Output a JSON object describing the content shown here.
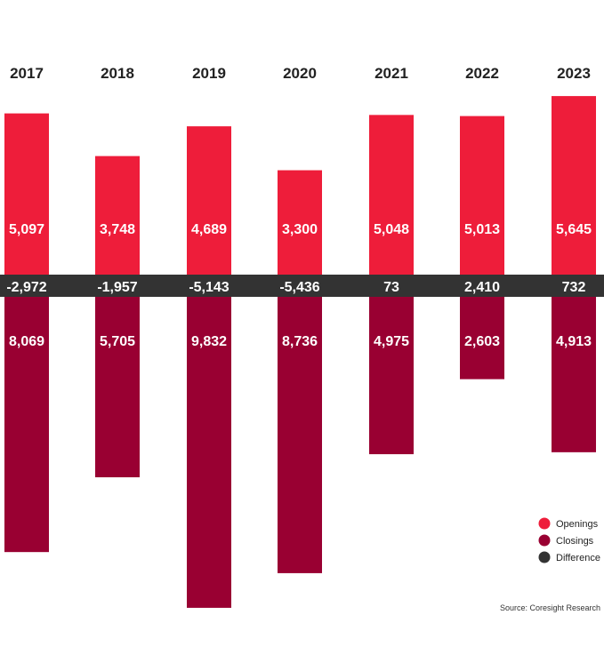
{
  "chart_data": {
    "type": "bar",
    "categories": [
      "2017",
      "2018",
      "2019",
      "2020",
      "2021",
      "2022",
      "2023"
    ],
    "series": [
      {
        "name": "Openings",
        "values": [
          5097,
          3748,
          4689,
          3300,
          5048,
          5013,
          5645
        ],
        "labels": [
          "5,097",
          "3,748",
          "4,689",
          "3,300",
          "5,048",
          "5,013",
          "5,645"
        ]
      },
      {
        "name": "Closings",
        "values": [
          8069,
          5705,
          9832,
          8736,
          4975,
          2603,
          4913
        ],
        "labels": [
          "8,069",
          "5,705",
          "9,832",
          "8,736",
          "4,975",
          "2,603",
          "4,913"
        ]
      },
      {
        "name": "Difference",
        "values": [
          -2972,
          -1957,
          -5143,
          -5436,
          73,
          2410,
          732
        ],
        "labels": [
          "-2,972",
          "-1,957",
          "-5,143",
          "-5,436",
          "73",
          "2,410",
          "732"
        ]
      }
    ],
    "legend_position": "bottom-right",
    "grid": false
  },
  "colors": {
    "openings": "#ee1d3a",
    "closings": "#990032",
    "difference": "#333333"
  },
  "source": "Source: Coresight Research"
}
